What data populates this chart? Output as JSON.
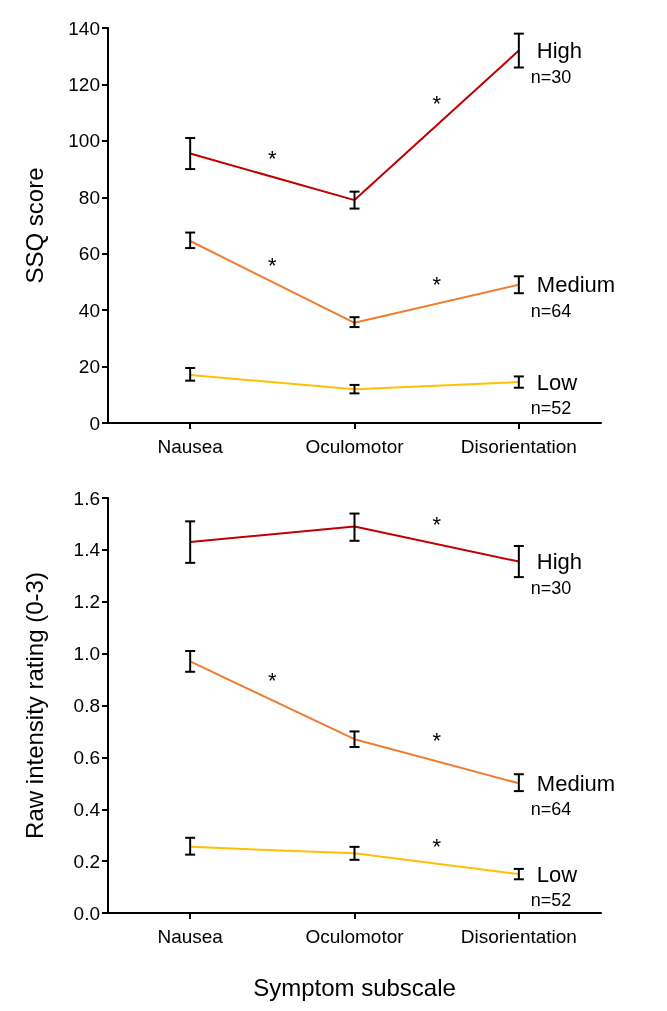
{
  "chart_data": [
    {
      "type": "line",
      "ylabel": "SSQ score",
      "categories": [
        "Nausea",
        "Oculomotor",
        "Disorientation"
      ],
      "ylim": [
        0,
        140
      ],
      "yticks": [
        0,
        20,
        40,
        60,
        80,
        100,
        120,
        140
      ],
      "grid": false,
      "legend": false,
      "marker": "none",
      "series": [
        {
          "name": "High",
          "color": "#c00000",
          "values": [
            95.5,
            79,
            132
          ],
          "errors": [
            [
              90,
              101
            ],
            [
              76,
              82
            ],
            [
              126,
              138
            ]
          ]
        },
        {
          "name": "Medium",
          "color": "#ed7d31",
          "values": [
            64.5,
            35.5,
            49
          ],
          "errors": [
            [
              62,
              67.5
            ],
            [
              34,
              37.5
            ],
            [
              46,
              52
            ]
          ]
        },
        {
          "name": "Low",
          "color": "#ffc000",
          "values": [
            17,
            12,
            14.5
          ],
          "errors": [
            [
              15,
              19.5
            ],
            [
              10.5,
              13.5
            ],
            [
              12.5,
              16.5
            ]
          ]
        }
      ],
      "annotations": [
        {
          "text": "n=30",
          "x": "Disorientation",
          "y": 132
        },
        {
          "text": "n=64",
          "x": "Disorientation",
          "y": 49
        },
        {
          "text": "n=52",
          "x": "Disorientation",
          "y": 14.5
        },
        "*",
        "*",
        "*",
        "*"
      ]
    },
    {
      "type": "line",
      "ylabel": "Raw intensity rating (0-3)",
      "xlabel": "Symptom subscale",
      "categories": [
        "Nausea",
        "Oculomotor",
        "Disorientation"
      ],
      "ylim": [
        0,
        1.6
      ],
      "yticks": [
        {
          "value": 0,
          "label": "0.0"
        },
        0.2,
        0.4,
        0.6,
        0.8,
        {
          "value": 1,
          "label": "1.0"
        },
        1.2,
        1.4,
        1.6
      ],
      "grid": false,
      "legend": false,
      "marker": "none",
      "series": [
        {
          "name": "High",
          "color": "#c00000",
          "values": [
            1.43,
            1.49,
            1.355
          ],
          "errors": [
            [
              1.35,
              1.51
            ],
            [
              1.435,
              1.54
            ],
            [
              1.295,
              1.415
            ]
          ]
        },
        {
          "name": "Medium",
          "color": "#ed7d31",
          "values": [
            0.97,
            0.67,
            0.5
          ],
          "errors": [
            [
              0.93,
              1.01
            ],
            [
              0.64,
              0.7
            ],
            [
              0.47,
              0.535
            ]
          ]
        },
        {
          "name": "Low",
          "color": "#ffc000",
          "values": [
            0.255,
            0.23,
            0.15
          ],
          "errors": [
            [
              0.225,
              0.29
            ],
            [
              0.205,
              0.255
            ],
            [
              0.13,
              0.17
            ]
          ]
        }
      ],
      "annotations": [
        {
          "text": "n=30",
          "x": "Disorientation",
          "y": 1.355
        },
        {
          "text": "n=64",
          "x": "Disorientation",
          "y": 0.5
        },
        {
          "text": "n=52",
          "x": "Disorientation",
          "y": 0.15
        },
        "*",
        "*",
        "*",
        "*"
      ]
    }
  ]
}
